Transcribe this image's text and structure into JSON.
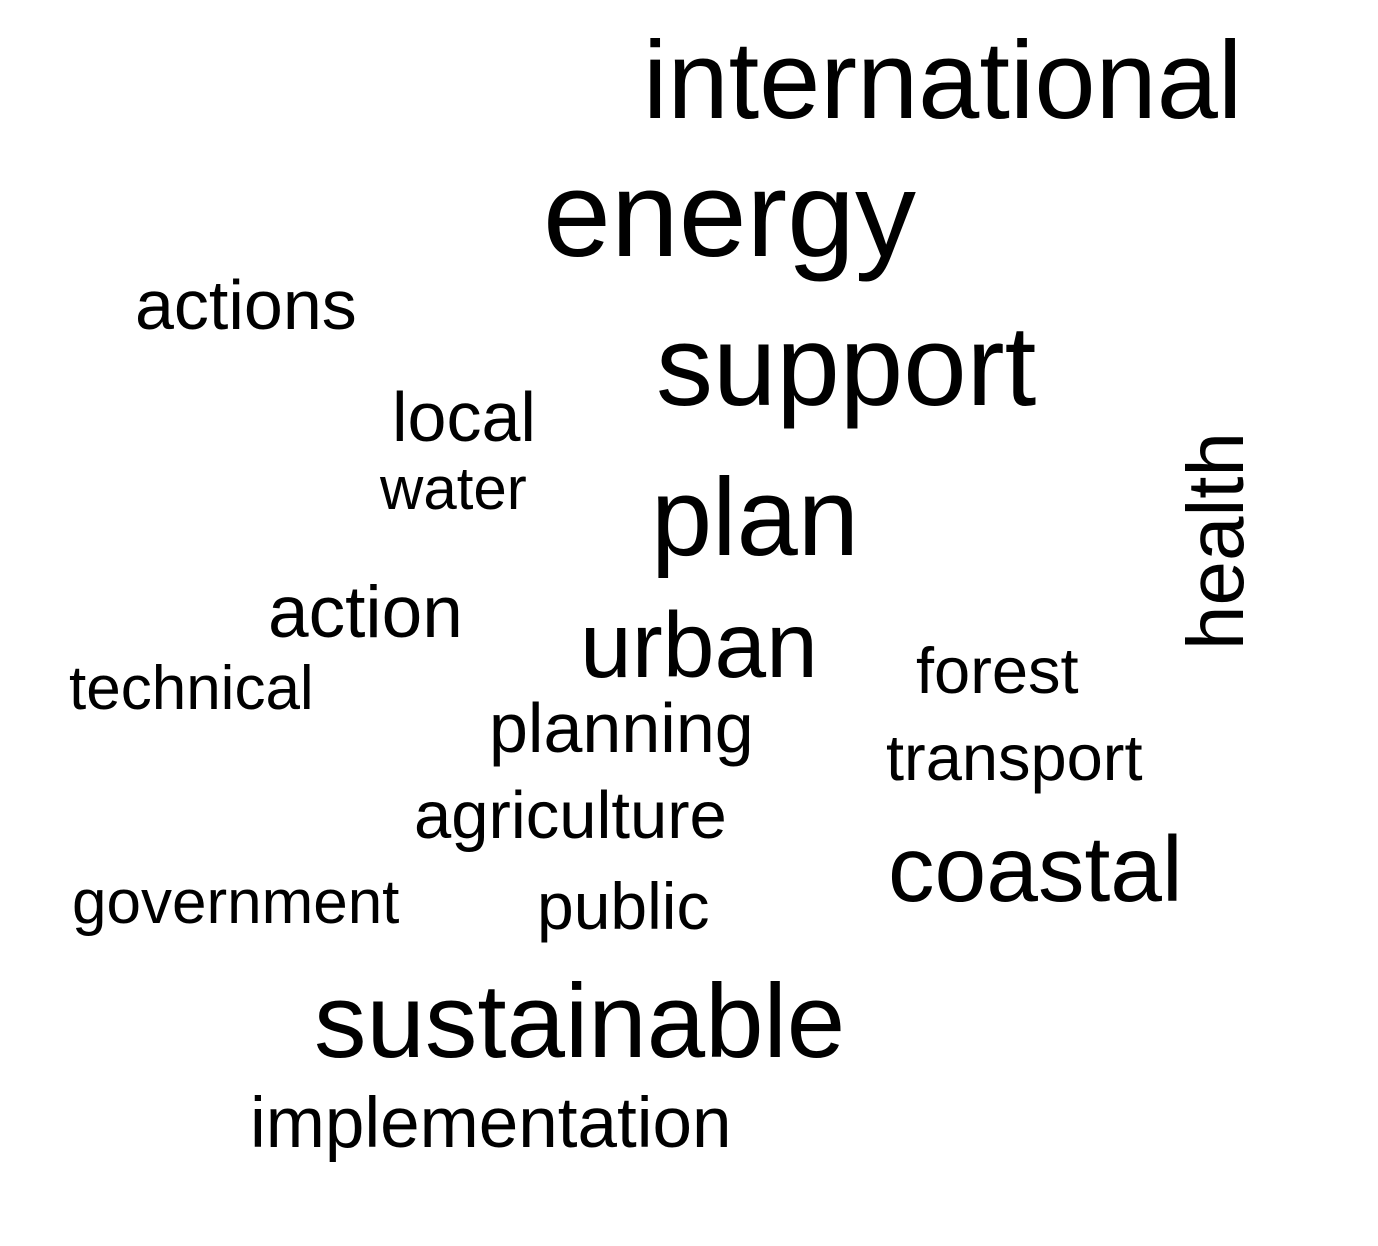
{
  "word_cloud": {
    "color": "#000000",
    "words": {
      "international": "international",
      "energy": "energy",
      "actions": "actions",
      "support": "support",
      "local": "local",
      "water": "water",
      "plan": "plan",
      "health": "health",
      "action": "action",
      "urban": "urban",
      "technical": "technical",
      "forest": "forest",
      "planning": "planning",
      "transport": "transport",
      "agriculture": "agriculture",
      "coastal": "coastal",
      "government": "government",
      "public": "public",
      "sustainable": "sustainable",
      "implementation": "implementation"
    }
  }
}
